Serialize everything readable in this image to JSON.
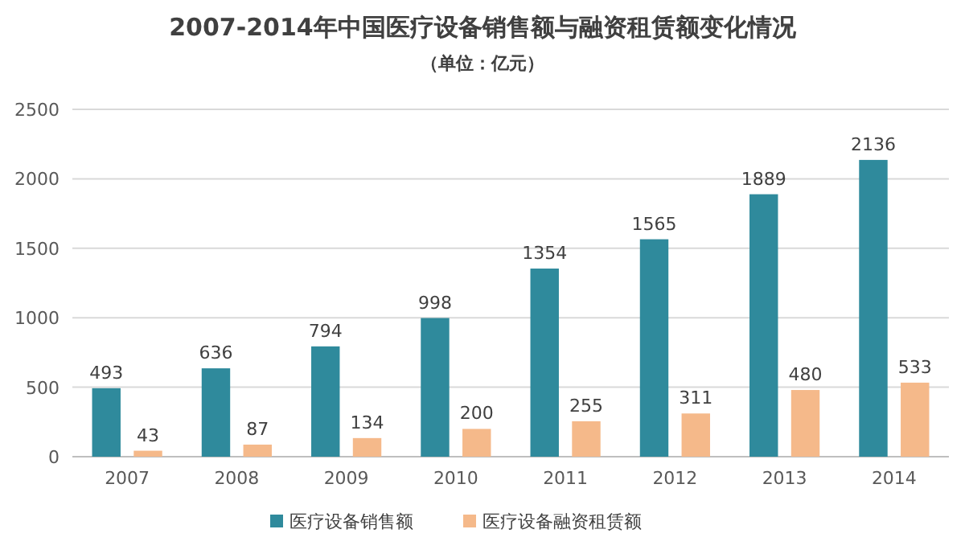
{
  "chart_data": {
    "type": "bar",
    "title": "2007-2014年中国医疗设备销售额与融资租赁额变化情况",
    "subtitle": "（单位：亿元）",
    "categories": [
      "2007",
      "2008",
      "2009",
      "2010",
      "2011",
      "2012",
      "2013",
      "2014"
    ],
    "series": [
      {
        "name": "医疗设备销售额",
        "color": "#2f8a9c",
        "values": [
          493,
          636,
          794,
          998,
          1354,
          1565,
          1889,
          2136
        ]
      },
      {
        "name": "医疗设备融资租赁额",
        "color": "#f5b98a",
        "values": [
          43,
          87,
          134,
          200,
          255,
          311,
          480,
          533
        ]
      }
    ],
    "ylim": [
      0,
      2500
    ],
    "yticks": [
      0,
      500,
      1000,
      1500,
      2000,
      2500
    ],
    "grid": "y",
    "legend": "bottom",
    "data_labels": true
  }
}
